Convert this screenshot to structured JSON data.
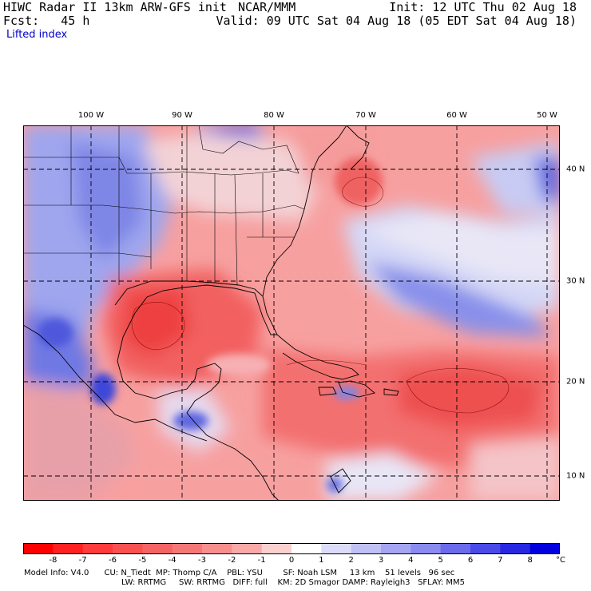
{
  "header": {
    "title": "HIWC Radar II 13km ARW-GFS init",
    "source": "NCAR/MMM",
    "init": "Init: 12 UTC Thu 02 Aug 18",
    "fcst": "Fcst:   45 h",
    "valid": "Valid: 09 UTC Sat 04 Aug 18 (05 EDT Sat 04 Aug 18)",
    "field": "Lifted index"
  },
  "map": {
    "longitude_labels": [
      "100 W",
      "90 W",
      "80 W",
      "70 W",
      "60 W",
      "50 W"
    ],
    "latitude_labels": [
      "40 N",
      "30 N",
      "20 N",
      "10 N"
    ]
  },
  "colorbar": {
    "labels": [
      "-8",
      "-7",
      "-6",
      "-5",
      "-4",
      "-3",
      "-2",
      "-1",
      "0",
      "1",
      "2",
      "3",
      "4",
      "5",
      "6",
      "7",
      "8"
    ],
    "unit": "°C",
    "colors": [
      "#ff0000",
      "#ff2020",
      "#ff3b3b",
      "#f95050",
      "#f56464",
      "#f57878",
      "#f78f8f",
      "#faa8a8",
      "#fdd0d0",
      "#ffffff",
      "#dcdcfa",
      "#c0c0f7",
      "#a5a5f3",
      "#8a8af0",
      "#6b6bec",
      "#4a4ae8",
      "#2828e3",
      "#0000dd"
    ]
  },
  "model_info": {
    "line1": "Model Info: V4.0      CU: N_Tiedt  MP: Thomp C/A    PBL: YSU        SF: Noah LSM     13 km    51 levels   96 sec",
    "line2": "LW: RRTMG     SW: RRTMG   DIFF: full    KM: 2D Smagor DAMP: Rayleigh3   SFLAY: MM5"
  }
}
